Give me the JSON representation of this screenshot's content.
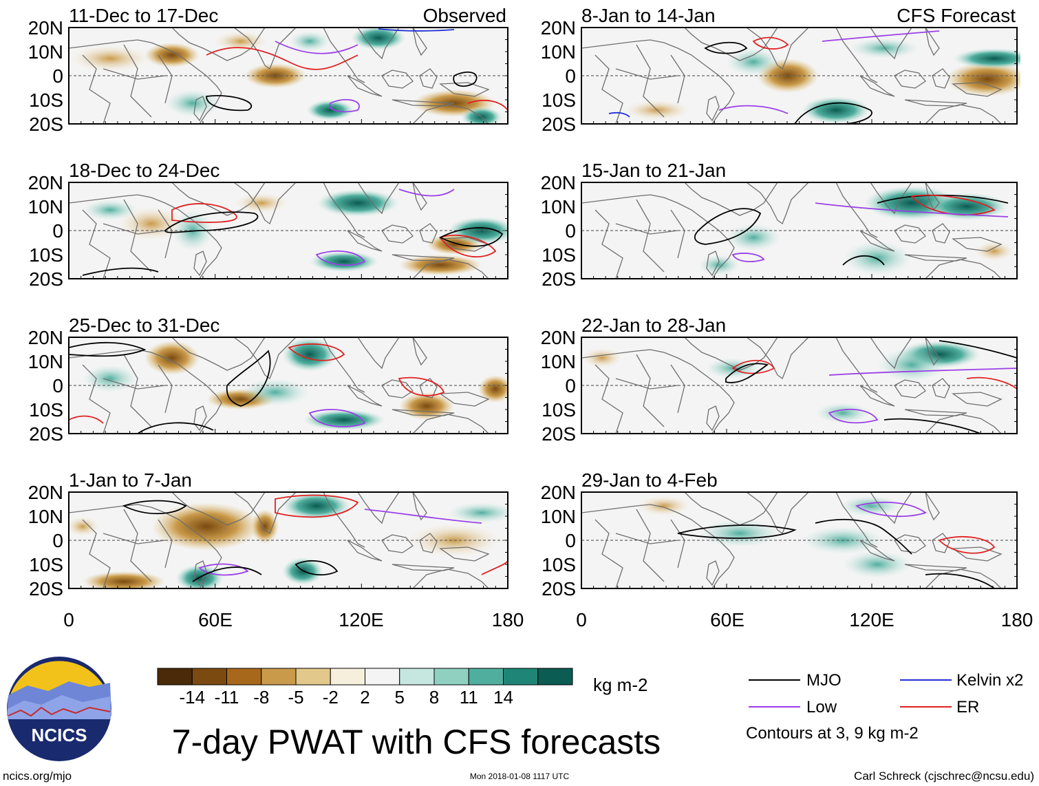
{
  "title": "7-day PWAT with CFS forecasts",
  "left_column_label": "Observed",
  "right_column_label": "CFS Forecast",
  "lat_labels": [
    "20N",
    "10N",
    "0",
    "10S",
    "20S"
  ],
  "lon_labels": [
    "0",
    "60E",
    "120E",
    "180"
  ],
  "panels_left": [
    {
      "period": "11-Dec to 17-Dec"
    },
    {
      "period": "18-Dec to 24-Dec"
    },
    {
      "period": "25-Dec to 31-Dec"
    },
    {
      "period": "1-Jan to 7-Jan"
    }
  ],
  "panels_right": [
    {
      "period": "8-Jan to 14-Jan"
    },
    {
      "period": "15-Jan to 21-Jan"
    },
    {
      "period": "22-Jan to 28-Jan"
    },
    {
      "period": "29-Jan to 4-Feb"
    }
  ],
  "colorbar": {
    "unit": "kg m-2",
    "ticks": [
      "-14",
      "-11",
      "-8",
      "-5",
      "-2",
      "2",
      "5",
      "8",
      "11",
      "14"
    ],
    "colors": [
      "#4a2a08",
      "#7a4a10",
      "#a8681c",
      "#c99a4a",
      "#e2c88a",
      "#f6efdc",
      "#f4f4f4",
      "#c6e7df",
      "#8fd0c1",
      "#4fae9e",
      "#1f8576",
      "#0b5c52"
    ]
  },
  "legend": {
    "items": [
      {
        "label": "MJO",
        "color": "#000000"
      },
      {
        "label": "Kelvin x2",
        "color": "#1f2fd6"
      },
      {
        "label": "Low",
        "color": "#9a3fe6"
      },
      {
        "label": "ER",
        "color": "#e02020"
      }
    ],
    "note": "Contours at 3, 9 kg m-2"
  },
  "logo_text": "NCICS",
  "footer": {
    "left": "ncics.org/mjo",
    "center": "Mon 2018-01-08 1117 UTC",
    "right": "Carl Schreck (cjschrec@ncsu.edu)"
  }
}
